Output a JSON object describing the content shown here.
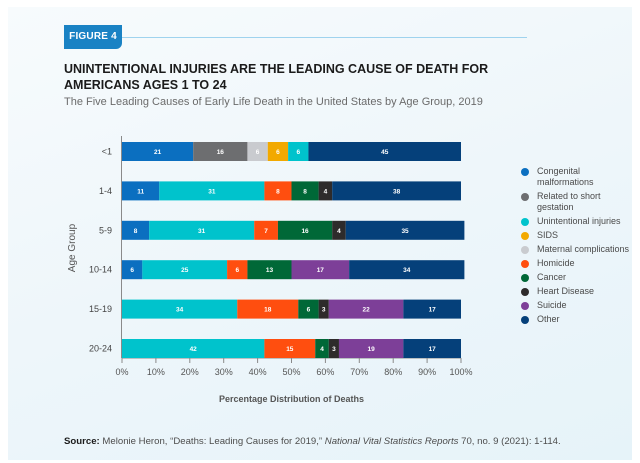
{
  "figure_label": "FIGURE 4",
  "chart_data": {
    "type": "bar",
    "orientation": "horizontal",
    "stacked": true,
    "title": "UNINTENTIONAL INJURIES ARE THE LEADING CAUSE OF DEATH FOR AMERICANS AGES 1 TO 24",
    "subtitle": "The Five Leading Causes of Early Life Death in the United States by Age Group, 2019",
    "xlabel": "Percentage Distribution of Deaths",
    "ylabel": "Age Group",
    "xlim": [
      0,
      100
    ],
    "xticks": [
      "0%",
      "10%",
      "20%",
      "30%",
      "40%",
      "50%",
      "60%",
      "70%",
      "80%",
      "90%",
      "100%"
    ],
    "categories": [
      "<1",
      "1-4",
      "5-9",
      "10-14",
      "15-19",
      "20-24"
    ],
    "legend_position": "right",
    "series": [
      {
        "name": "Congenital malformations",
        "color": "#0b6fc0",
        "values": [
          21,
          11,
          8,
          6,
          0,
          0
        ]
      },
      {
        "name": "Related to short gestation",
        "color": "#6d6e70",
        "values": [
          16,
          0,
          0,
          0,
          0,
          0
        ]
      },
      {
        "name": "Maternal complications",
        "color": "#c9cbcf",
        "values": [
          6,
          0,
          0,
          0,
          0,
          0
        ]
      },
      {
        "name": "SIDS",
        "color": "#f2a900",
        "values": [
          6,
          0,
          0,
          0,
          0,
          0
        ]
      },
      {
        "name": "Unintentional injuries",
        "color": "#00c3cc",
        "values": [
          6,
          31,
          31,
          25,
          34,
          42
        ]
      },
      {
        "name": "Homicide",
        "color": "#ff4e0f",
        "values": [
          0,
          8,
          7,
          6,
          18,
          15
        ]
      },
      {
        "name": "Cancer",
        "color": "#006837",
        "values": [
          0,
          8,
          16,
          13,
          6,
          4
        ]
      },
      {
        "name": "Heart Disease",
        "color": "#2e2b2b",
        "values": [
          0,
          4,
          4,
          0,
          3,
          3
        ]
      },
      {
        "name": "Suicide",
        "color": "#7d3f98",
        "values": [
          0,
          0,
          0,
          17,
          22,
          19
        ]
      },
      {
        "name": "Other",
        "color": "#05407a",
        "values": [
          45,
          38,
          35,
          34,
          17,
          17
        ]
      }
    ],
    "legend_order": [
      "Congenital malformations",
      "Related to short gestation",
      "Unintentional injuries",
      "SIDS",
      "Maternal complications",
      "Homicide",
      "Cancer",
      "Heart Disease",
      "Suicide",
      "Other"
    ]
  },
  "source": {
    "label": "Source:",
    "text_pre": " Melonie Heron, “Deaths: Leading Causes for 2019,” ",
    "journal": "National Vital Statistics Reports",
    "text_post": " 70, no. 9 (2021): 1-114."
  }
}
